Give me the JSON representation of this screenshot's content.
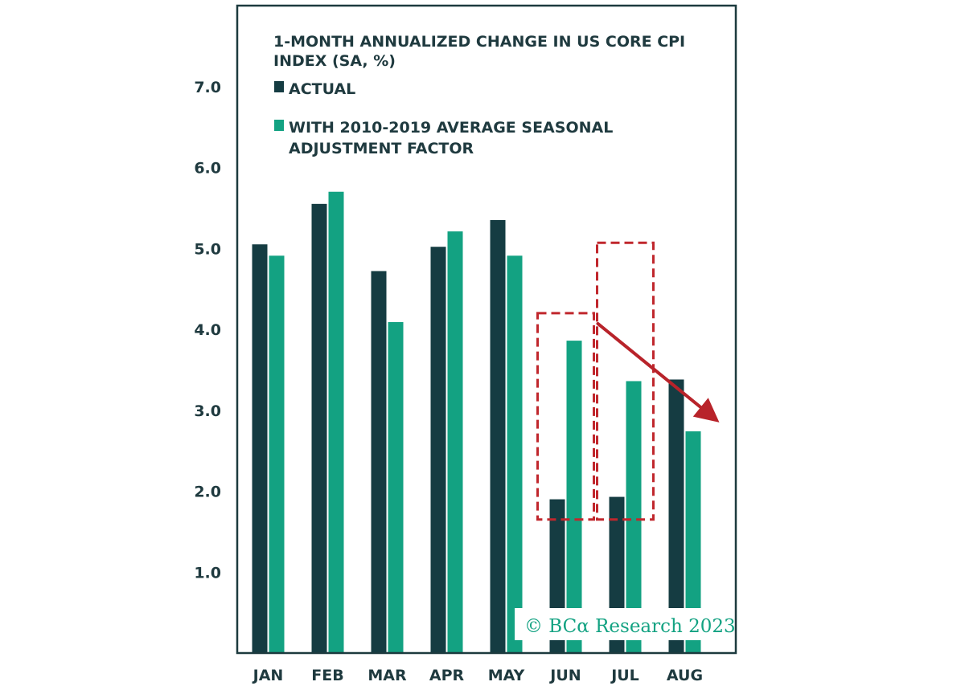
{
  "chart_data": {
    "type": "bar",
    "title_lines": [
      "1-MONTH ANNUALIZED CHANGE IN US CORE CPI",
      "INDEX (SA, %)"
    ],
    "categories": [
      "JAN",
      "FEB",
      "MAR",
      "APR",
      "MAY",
      "JUN",
      "JUL",
      "AUG"
    ],
    "series": [
      {
        "name": "ACTUAL",
        "legend_lines": [
          "ACTUAL"
        ],
        "color": "#153c42",
        "values": [
          5.05,
          5.55,
          4.72,
          5.02,
          5.35,
          1.9,
          1.93,
          3.38
        ]
      },
      {
        "name": "WITH 2010-2019 AVERAGE SEASONAL ADJUSTMENT FACTOR",
        "legend_lines": [
          "WITH 2010-2019 AVERAGE SEASONAL",
          "ADJUSTMENT FACTOR"
        ],
        "color": "#13a282",
        "values": [
          4.91,
          5.7,
          4.09,
          5.21,
          4.91,
          3.86,
          3.36,
          2.74
        ]
      }
    ],
    "yticks": [
      "1.0",
      "2.0",
      "3.0",
      "4.0",
      "5.0",
      "6.0",
      "7.0"
    ],
    "ylim": [
      0,
      8.0
    ],
    "xlabel": "",
    "ylabel": "",
    "grid": false,
    "legend_position": "top-left",
    "annotations": {
      "highlight_boxes": [
        {
          "category": "JUN",
          "y_range": [
            1.65,
            4.2
          ],
          "style": "dashed",
          "color": "#c0272d"
        },
        {
          "category": "JUL",
          "y_range": [
            1.65,
            5.07
          ],
          "style": "dashed",
          "color": "#c0272d"
        }
      ],
      "trend_arrow": {
        "from": {
          "category": "JUN",
          "y": 4.07
        },
        "to": {
          "category": "AUG",
          "y": 2.85
        },
        "color": "#b8232a"
      }
    },
    "credit": "© BCα Research 2023",
    "credit_color": "#13a282",
    "frame_color": "#1c3a3e"
  }
}
